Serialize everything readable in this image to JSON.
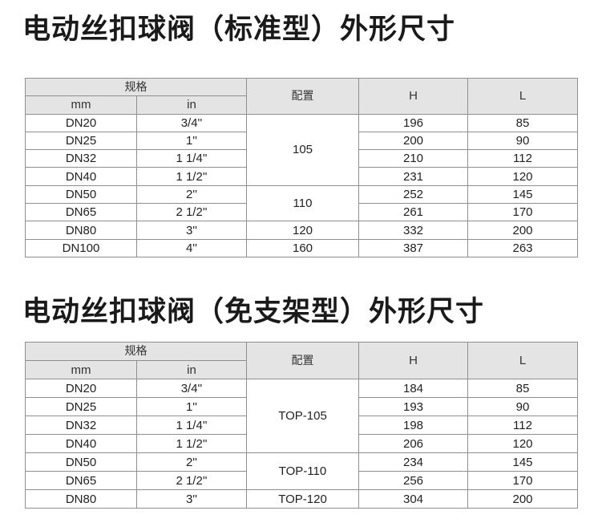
{
  "tables": [
    {
      "title": "电动丝扣球阀（标准型）外形尺寸",
      "headers": {
        "spec": "规格",
        "mm": "mm",
        "in": "in",
        "config": "配置",
        "h": "H",
        "l": "L"
      },
      "rows": [
        {
          "mm": "DN20",
          "in": "3/4''",
          "config": "105",
          "config_span": 4,
          "h": "196",
          "l": "85"
        },
        {
          "mm": "DN25",
          "in": "1''",
          "h": "200",
          "l": "90"
        },
        {
          "mm": "DN32",
          "in": "1 1/4''",
          "h": "210",
          "l": "112"
        },
        {
          "mm": "DN40",
          "in": "1 1/2''",
          "h": "231",
          "l": "120"
        },
        {
          "mm": "DN50",
          "in": "2''",
          "config": "110",
          "config_span": 2,
          "h": "252",
          "l": "145"
        },
        {
          "mm": "DN65",
          "in": "2 1/2''",
          "h": "261",
          "l": "170"
        },
        {
          "mm": "DN80",
          "in": "3''",
          "config": "120",
          "config_span": 1,
          "h": "332",
          "l": "200"
        },
        {
          "mm": "DN100",
          "in": "4''",
          "config": "160",
          "config_span": 1,
          "h": "387",
          "l": "263"
        }
      ]
    },
    {
      "title": "电动丝扣球阀（免支架型）外形尺寸",
      "headers": {
        "spec": "规格",
        "mm": "mm",
        "in": "in",
        "config": "配置",
        "h": "H",
        "l": "L"
      },
      "rows": [
        {
          "mm": "DN20",
          "in": "3/4''",
          "config": "TOP-105",
          "config_span": 4,
          "h": "184",
          "l": "85"
        },
        {
          "mm": "DN25",
          "in": "1''",
          "h": "193",
          "l": "90"
        },
        {
          "mm": "DN32",
          "in": "1 1/4''",
          "h": "198",
          "l": "112"
        },
        {
          "mm": "DN40",
          "in": "1 1/2''",
          "h": "206",
          "l": "120"
        },
        {
          "mm": "DN50",
          "in": "2''",
          "config": "TOP-110",
          "config_span": 2,
          "h": "234",
          "l": "145"
        },
        {
          "mm": "DN65",
          "in": "2 1/2''",
          "h": "256",
          "l": "170"
        },
        {
          "mm": "DN80",
          "in": "3''",
          "config": "TOP-120",
          "config_span": 1,
          "h": "304",
          "l": "200"
        }
      ]
    }
  ]
}
